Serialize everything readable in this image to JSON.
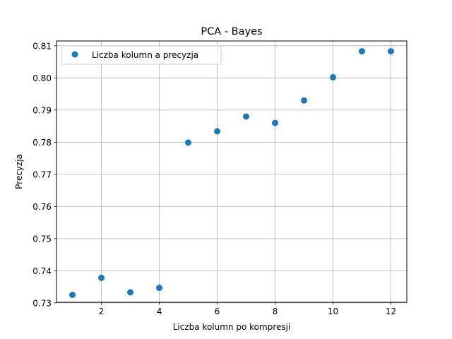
{
  "chart_data": {
    "type": "scatter",
    "title": "PCA - Bayes",
    "xlabel": "Liczba kolumn po kompresji",
    "ylabel": "Precyzja",
    "xlim": [
      0.45,
      12.55
    ],
    "ylim": [
      0.7302,
      0.8115
    ],
    "xticks": [
      2,
      4,
      6,
      8,
      10,
      12
    ],
    "yticks": [
      0.73,
      0.74,
      0.75,
      0.76,
      0.77,
      0.78,
      0.79,
      0.8,
      0.81
    ],
    "xtick_labels": [
      "2",
      "4",
      "6",
      "8",
      "10",
      "12"
    ],
    "ytick_labels": [
      "0.73",
      "0.74",
      "0.75",
      "0.76",
      "0.77",
      "0.78",
      "0.79",
      "0.80",
      "0.81"
    ],
    "grid": true,
    "legend_position": "top-left",
    "series": [
      {
        "name": "Liczba kolumn a precyzja",
        "color": "#1f77b4",
        "x": [
          1,
          2,
          3,
          4,
          5,
          6,
          7,
          8,
          9,
          10,
          11,
          12
        ],
        "y": [
          0.7325,
          0.7378,
          0.7333,
          0.7347,
          0.7799,
          0.7834,
          0.788,
          0.786,
          0.793,
          0.8002,
          0.8083,
          0.8083
        ]
      }
    ]
  }
}
